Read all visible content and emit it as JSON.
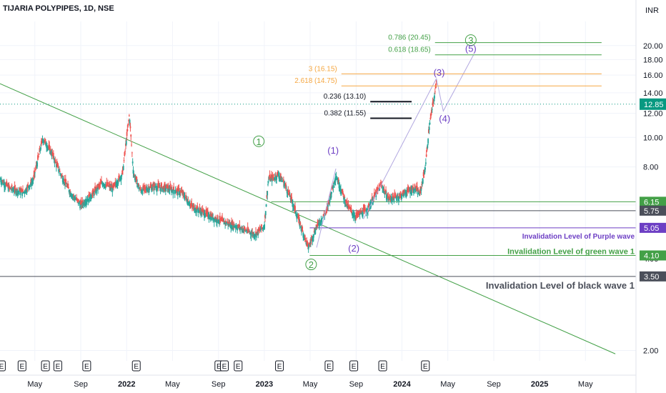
{
  "header": {
    "symbol_title": "TIJARIA POLYPIPES, 1D, NSE",
    "currency": "INR"
  },
  "chart_data": {
    "type": "candlestick",
    "y_axis": {
      "scale": "log",
      "ticks": [
        "20.00",
        "18.00",
        "16.00",
        "14.00",
        "12.00",
        "10.00",
        "8.00",
        "6.00",
        "4.00",
        "2.00"
      ],
      "range": [
        1.85,
        24.0
      ]
    },
    "x_axis": {
      "range_years": [
        2021.08,
        2025.7
      ],
      "ticks": [
        {
          "t": 2021.333,
          "label": "May"
        },
        {
          "t": 2021.667,
          "label": "Sep"
        },
        {
          "t": 2022.0,
          "label": "2022"
        },
        {
          "t": 2022.333,
          "label": "May"
        },
        {
          "t": 2022.667,
          "label": "Sep"
        },
        {
          "t": 2023.0,
          "label": "2023"
        },
        {
          "t": 2023.333,
          "label": "May"
        },
        {
          "t": 2023.667,
          "label": "Sep"
        },
        {
          "t": 2024.0,
          "label": "2024"
        },
        {
          "t": 2024.333,
          "label": "May"
        },
        {
          "t": 2024.667,
          "label": "Sep"
        },
        {
          "t": 2025.0,
          "label": "2025"
        },
        {
          "t": 2025.333,
          "label": "May"
        }
      ]
    },
    "price_path": [
      [
        2021.08,
        7.3
      ],
      [
        2021.15,
        6.8
      ],
      [
        2021.25,
        6.6
      ],
      [
        2021.32,
        7.2
      ],
      [
        2021.39,
        9.9
      ],
      [
        2021.45,
        9.0
      ],
      [
        2021.52,
        7.6
      ],
      [
        2021.6,
        6.5
      ],
      [
        2021.67,
        6.0
      ],
      [
        2021.75,
        6.5
      ],
      [
        2021.82,
        7.1
      ],
      [
        2021.9,
        6.8
      ],
      [
        2021.97,
        7.6
      ],
      [
        2022.02,
        11.9
      ],
      [
        2022.05,
        7.6
      ],
      [
        2022.1,
        6.7
      ],
      [
        2022.2,
        6.9
      ],
      [
        2022.3,
        6.8
      ],
      [
        2022.4,
        6.6
      ],
      [
        2022.48,
        5.9
      ],
      [
        2022.55,
        5.7
      ],
      [
        2022.65,
        5.4
      ],
      [
        2022.75,
        5.2
      ],
      [
        2022.85,
        5.0
      ],
      [
        2022.93,
        4.8
      ],
      [
        2023.0,
        5.1
      ],
      [
        2023.03,
        7.3
      ],
      [
        2023.08,
        7.4
      ],
      [
        2023.1,
        7.6
      ],
      [
        2023.15,
        7.0
      ],
      [
        2023.2,
        6.2
      ],
      [
        2023.28,
        4.9
      ],
      [
        2023.32,
        4.35
      ],
      [
        2023.38,
        5.1
      ],
      [
        2023.45,
        5.7
      ],
      [
        2023.52,
        7.5
      ],
      [
        2023.6,
        6.0
      ],
      [
        2023.66,
        5.5
      ],
      [
        2023.75,
        5.8
      ],
      [
        2023.8,
        6.4
      ],
      [
        2023.85,
        7.0
      ],
      [
        2023.9,
        6.3
      ],
      [
        2023.98,
        6.4
      ],
      [
        2024.05,
        6.7
      ],
      [
        2024.1,
        6.8
      ],
      [
        2024.13,
        6.5
      ],
      [
        2024.17,
        8.0
      ],
      [
        2024.2,
        11.0
      ],
      [
        2024.23,
        13.2
      ],
      [
        2024.25,
        15.0
      ]
    ],
    "last_price": "12.85",
    "wave_labels": [
      {
        "text": "1",
        "t": 2022.96,
        "y": 9.5,
        "color": "#43a047",
        "circled": true
      },
      {
        "text": "2",
        "t": 2023.34,
        "y": 3.75,
        "color": "#43a047",
        "circled": true
      },
      {
        "text": "3",
        "t": 2024.5,
        "y": 20.4,
        "color": "#43a047",
        "circled": true
      },
      {
        "text": "(1)",
        "t": 2023.5,
        "y": 8.9,
        "color": "#6d3fc4",
        "circled": false
      },
      {
        "text": "(2)",
        "t": 2023.65,
        "y": 4.25,
        "color": "#6d3fc4",
        "circled": false
      },
      {
        "text": "(3)",
        "t": 2024.27,
        "y": 16.0,
        "color": "#6d3fc4",
        "circled": false
      },
      {
        "text": "(4)",
        "t": 2024.31,
        "y": 11.3,
        "color": "#6d3fc4",
        "circled": false
      },
      {
        "text": "(5)",
        "t": 2024.5,
        "y": 19.2,
        "color": "#6d3fc4",
        "circled": false
      }
    ],
    "fib_levels": [
      {
        "label": "0.786 (20.45)",
        "value": 20.45,
        "color": "#43a047",
        "t_start": 2024.24,
        "t_end": 2025.45
      },
      {
        "label": "0.618 (18.65)",
        "value": 18.65,
        "color": "#43a047",
        "t_start": 2024.24,
        "t_end": 2025.45
      },
      {
        "label": "3 (16.15)",
        "value": 16.15,
        "color": "#f5a742",
        "t_start": 2023.56,
        "t_end": 2025.45
      },
      {
        "label": "2.618 (14.75)",
        "value": 14.75,
        "color": "#f5a742",
        "t_start": 2023.56,
        "t_end": 2025.45
      },
      {
        "label": "0.236 (13.10)",
        "value": 13.1,
        "color": "#131722",
        "t_start": 2023.77,
        "t_end": 2024.07
      },
      {
        "label": "0.382 (11.55)",
        "value": 11.55,
        "color": "#131722",
        "t_start": 2023.77,
        "t_end": 2024.07
      }
    ],
    "level_badges": [
      {
        "value": "6.15",
        "color": "#43a047"
      },
      {
        "value": "5.75",
        "color": "#4b4f5a"
      },
      {
        "value": "5.05",
        "color": "#6d3fc4"
      },
      {
        "value": "4.10",
        "color": "#43a047"
      },
      {
        "value": "3.50",
        "color": "#4b4f5a"
      }
    ],
    "annotations": [
      {
        "text": "Invalidation Level of Purple wave",
        "color": "#6d3fc4",
        "value": 5.05
      },
      {
        "text": "Invalidation Level of green wave 1",
        "color": "#43a047",
        "value": 4.1
      },
      {
        "text": "Invalidation Level of black wave 1",
        "color": "#4b4f5a",
        "value": 3.5
      }
    ],
    "earnings_markers": {
      "label": "E",
      "t": [
        2021.09,
        2021.24,
        2021.41,
        2021.5,
        2021.71,
        2022.07,
        2022.67,
        2022.71,
        2022.81,
        2023.11,
        2023.47,
        2023.65,
        2023.86,
        2024.17
      ]
    },
    "colors": {
      "up": "#26a69a",
      "down": "#ef5350",
      "trendline": "#43a047",
      "wave_path": "#b2a8e0",
      "last_price": "#089981"
    }
  }
}
